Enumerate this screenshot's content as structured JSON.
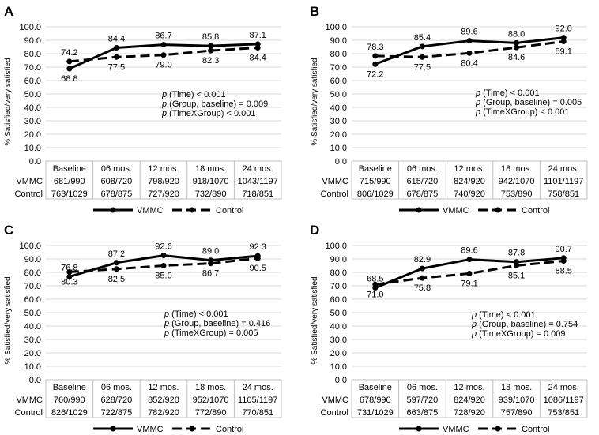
{
  "legend": {
    "vmmc": "VMMC",
    "control": "Control"
  },
  "chart_data": [
    {
      "panel": "A",
      "type": "line",
      "ylabel": "% Satisfied/very satisfied",
      "ylim": [
        0,
        100
      ],
      "yticks": [
        "0.0",
        "10.0",
        "20.0",
        "30.0",
        "40.0",
        "50.0",
        "60.0",
        "70.0",
        "80.0",
        "90.0",
        "100.0"
      ],
      "categories": [
        "Baseline",
        "06 mos.",
        "12 mos.",
        "18 mos.",
        "24 mos."
      ],
      "series": [
        {
          "name": "VMMC",
          "style": "solid",
          "values": [
            68.8,
            84.4,
            86.7,
            85.8,
            87.1
          ],
          "labels": [
            "68.8",
            "84.4",
            "86.7",
            "85.8",
            "87.1"
          ],
          "counts": [
            "681/990",
            "608/720",
            "798/920",
            "918/1070",
            "1043/1197"
          ]
        },
        {
          "name": "Control",
          "style": "dashed",
          "values": [
            74.2,
            77.5,
            79.0,
            82.3,
            84.4
          ],
          "labels": [
            "74.2",
            "77.5",
            "79.0",
            "82.3",
            "84.4"
          ],
          "counts": [
            "763/1029",
            "678/875",
            "727/920",
            "732/890",
            "718/851"
          ]
        }
      ],
      "stats": [
        {
          "p": "p",
          "text": " (Time) < 0.001"
        },
        {
          "p": "p",
          "text": " (Group, baseline) = 0.009"
        },
        {
          "p": "p",
          "text": " (TimeXGroup) < 0.001"
        }
      ]
    },
    {
      "panel": "B",
      "type": "line",
      "ylabel": "% Satisfied/very satisfied",
      "ylim": [
        0,
        100
      ],
      "yticks": [
        "0.0",
        "10.0",
        "20.0",
        "30.0",
        "40.0",
        "50.0",
        "60.0",
        "70.0",
        "80.0",
        "90.0",
        "100.0"
      ],
      "categories": [
        "Baseline",
        "06 mos.",
        "12 mos.",
        "18 mos.",
        "24 mos."
      ],
      "series": [
        {
          "name": "VMMC",
          "style": "solid",
          "values": [
            72.2,
            85.4,
            89.6,
            88.0,
            92.0
          ],
          "labels": [
            "72.2",
            "85.4",
            "89.6",
            "88.0",
            "92.0"
          ],
          "counts": [
            "715/990",
            "615/720",
            "824/920",
            "942/1070",
            "1101/1197"
          ]
        },
        {
          "name": "Control",
          "style": "dashed",
          "values": [
            78.3,
            77.5,
            80.4,
            84.6,
            89.1
          ],
          "labels": [
            "78.3",
            "77.5",
            "80.4",
            "84.6",
            "89.1"
          ],
          "counts": [
            "806/1029",
            "678/875",
            "740/920",
            "753/890",
            "758/851"
          ]
        }
      ],
      "stats": [
        {
          "p": "p",
          "text": " (Time) < 0.001"
        },
        {
          "p": "p",
          "text": " (Group, baseline) = 0.005"
        },
        {
          "p": "p",
          "text": " (TimeXGroup) < 0.001"
        }
      ]
    },
    {
      "panel": "C",
      "type": "line",
      "ylabel": "% Satisfied/very satisfied",
      "ylim": [
        0,
        100
      ],
      "yticks": [
        "0.0",
        "10.0",
        "20.0",
        "30.0",
        "40.0",
        "50.0",
        "60.0",
        "70.0",
        "80.0",
        "90.0",
        "100.0"
      ],
      "categories": [
        "Baseline",
        "06 mos.",
        "12 mos.",
        "18 mos.",
        "24 mos."
      ],
      "series": [
        {
          "name": "VMMC",
          "style": "solid",
          "values": [
            76.8,
            87.2,
            92.6,
            89.0,
            92.3
          ],
          "labels": [
            "76.8",
            "87.2",
            "92.6",
            "89.0",
            "92.3"
          ],
          "counts": [
            "760/990",
            "628/720",
            "852/920",
            "952/1070",
            "1105/1197"
          ]
        },
        {
          "name": "Control",
          "style": "dashed",
          "values": [
            80.3,
            82.5,
            85.0,
            86.7,
            90.5
          ],
          "labels": [
            "80.3",
            "82.5",
            "85.0",
            "86.7",
            "90.5"
          ],
          "counts": [
            "826/1029",
            "722/875",
            "782/920",
            "772/890",
            "770/851"
          ]
        }
      ],
      "stats": [
        {
          "p": "p",
          "text": " (Time) < 0.001"
        },
        {
          "p": "p",
          "text": " (Group, baseline) = 0.416"
        },
        {
          "p": "p",
          "text": " (TimeXGroup) = 0.005"
        }
      ]
    },
    {
      "panel": "D",
      "type": "line",
      "ylabel": "% Satisfied/very satisfied",
      "ylim": [
        0,
        100
      ],
      "yticks": [
        "0.0",
        "10.0",
        "20.0",
        "30.0",
        "40.0",
        "50.0",
        "60.0",
        "70.0",
        "80.0",
        "90.0",
        "100.0"
      ],
      "categories": [
        "Baseline",
        "06 mos.",
        "12 mos.",
        "18 mos.",
        "24 mos."
      ],
      "series": [
        {
          "name": "VMMC",
          "style": "solid",
          "values": [
            68.5,
            82.9,
            89.6,
            87.8,
            90.7
          ],
          "labels": [
            "68.5",
            "82.9",
            "89.6",
            "87.8",
            "90.7"
          ],
          "counts": [
            "678/990",
            "597/720",
            "824/920",
            "939/1070",
            "1086/1197"
          ]
        },
        {
          "name": "Control",
          "style": "dashed",
          "values": [
            71.0,
            75.8,
            79.1,
            85.1,
            88.5
          ],
          "labels": [
            "71.0",
            "75.8",
            "79.1",
            "85.1",
            "88.5"
          ],
          "counts": [
            "731/1029",
            "663/875",
            "728/920",
            "757/890",
            "753/851"
          ]
        }
      ],
      "stats": [
        {
          "p": "p",
          "text": " (Time) < 0.001"
        },
        {
          "p": "p",
          "text": " (Group, baseline) = 0.754"
        },
        {
          "p": "p",
          "text": " (TimeXGroup) = 0.009"
        }
      ]
    }
  ]
}
